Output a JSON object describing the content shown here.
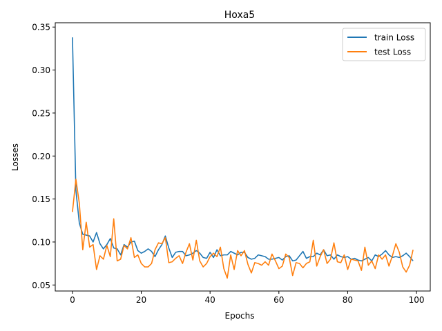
{
  "chart_data": {
    "type": "line",
    "title": "Hoxa5",
    "xlabel": "Epochs",
    "ylabel": "Losses",
    "xlim": [
      -5,
      104
    ],
    "ylim": [
      0.043,
      0.355
    ],
    "xticks": [
      0,
      20,
      40,
      60,
      80,
      100
    ],
    "yticks": [
      0.05,
      0.1,
      0.15,
      0.2,
      0.25,
      0.3,
      0.35
    ],
    "ytick_labels": [
      "0.05",
      "0.10",
      "0.15",
      "0.20",
      "0.25",
      "0.30",
      "0.35"
    ],
    "grid": false,
    "legend_position": "top-right",
    "series": [
      {
        "name": "train Loss",
        "color": "#1f77b4",
        "values": [
          0.338,
          0.16,
          0.122,
          0.109,
          0.108,
          0.107,
          0.1,
          0.111,
          0.098,
          0.092,
          0.097,
          0.104,
          0.093,
          0.092,
          0.085,
          0.097,
          0.094,
          0.1,
          0.101,
          0.09,
          0.087,
          0.089,
          0.092,
          0.089,
          0.083,
          0.091,
          0.097,
          0.107,
          0.093,
          0.082,
          0.088,
          0.089,
          0.089,
          0.084,
          0.085,
          0.087,
          0.09,
          0.087,
          0.082,
          0.081,
          0.088,
          0.082,
          0.091,
          0.084,
          0.085,
          0.085,
          0.089,
          0.087,
          0.085,
          0.088,
          0.088,
          0.082,
          0.08,
          0.081,
          0.085,
          0.084,
          0.083,
          0.08,
          0.08,
          0.081,
          0.082,
          0.079,
          0.083,
          0.084,
          0.078,
          0.079,
          0.084,
          0.089,
          0.081,
          0.083,
          0.083,
          0.087,
          0.085,
          0.091,
          0.084,
          0.085,
          0.08,
          0.085,
          0.083,
          0.082,
          0.083,
          0.08,
          0.081,
          0.079,
          0.078,
          0.08,
          0.082,
          0.078,
          0.085,
          0.083,
          0.086,
          0.09,
          0.085,
          0.082,
          0.083,
          0.082,
          0.084,
          0.087,
          0.083,
          0.078
        ]
      },
      {
        "name": "test Loss",
        "color": "#ff7f0e",
        "values": [
          0.135,
          0.173,
          0.145,
          0.091,
          0.123,
          0.094,
          0.097,
          0.068,
          0.084,
          0.08,
          0.096,
          0.083,
          0.127,
          0.078,
          0.08,
          0.096,
          0.092,
          0.105,
          0.082,
          0.085,
          0.075,
          0.071,
          0.071,
          0.075,
          0.091,
          0.099,
          0.098,
          0.105,
          0.076,
          0.077,
          0.081,
          0.084,
          0.075,
          0.088,
          0.098,
          0.079,
          0.102,
          0.078,
          0.071,
          0.075,
          0.083,
          0.087,
          0.083,
          0.094,
          0.069,
          0.058,
          0.085,
          0.068,
          0.09,
          0.084,
          0.09,
          0.074,
          0.064,
          0.076,
          0.075,
          0.073,
          0.077,
          0.073,
          0.086,
          0.078,
          0.069,
          0.072,
          0.086,
          0.082,
          0.061,
          0.076,
          0.075,
          0.07,
          0.075,
          0.077,
          0.102,
          0.072,
          0.083,
          0.091,
          0.075,
          0.08,
          0.099,
          0.077,
          0.076,
          0.085,
          0.068,
          0.08,
          0.079,
          0.078,
          0.067,
          0.094,
          0.073,
          0.078,
          0.069,
          0.085,
          0.08,
          0.085,
          0.072,
          0.084,
          0.098,
          0.088,
          0.071,
          0.065,
          0.073,
          0.091
        ]
      }
    ]
  }
}
